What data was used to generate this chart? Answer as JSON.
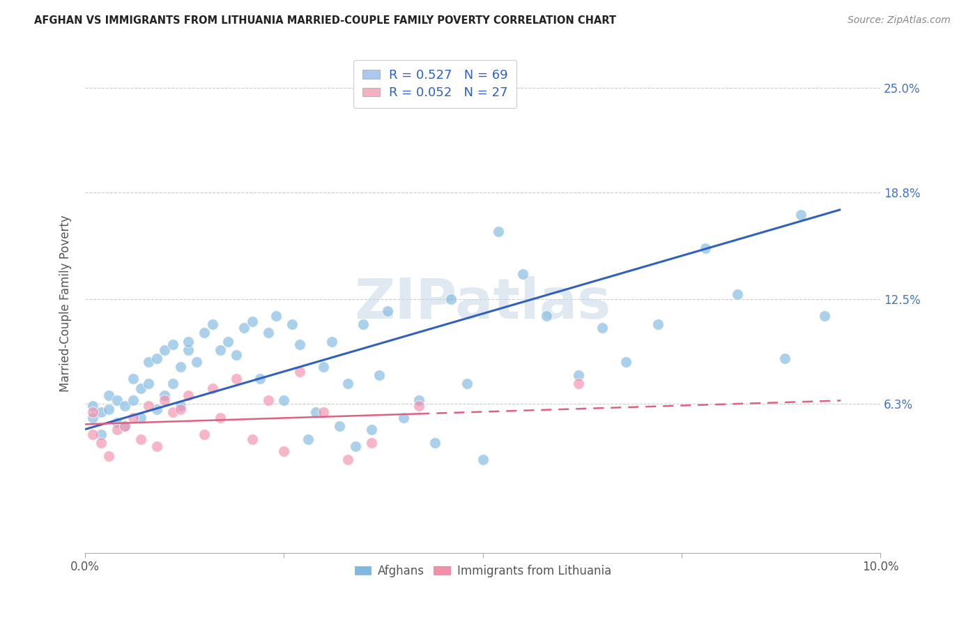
{
  "title": "AFGHAN VS IMMIGRANTS FROM LITHUANIA MARRIED-COUPLE FAMILY POVERTY CORRELATION CHART",
  "source": "Source: ZipAtlas.com",
  "ylabel": "Married-Couple Family Poverty",
  "ytick_labels": [
    "6.3%",
    "12.5%",
    "18.8%",
    "25.0%"
  ],
  "ytick_values": [
    0.063,
    0.125,
    0.188,
    0.25
  ],
  "xlim": [
    0.0,
    0.1
  ],
  "ylim": [
    -0.025,
    0.27
  ],
  "legend_label1": "R = 0.527   N = 69",
  "legend_label2": "R = 0.052   N = 27",
  "legend_color1": "#aac8f0",
  "legend_color2": "#f4b0c0",
  "watermark": "ZIPatlas",
  "afghans_color": "#7fb8e0",
  "lithuania_color": "#f48faa",
  "trendline_afghan_color": "#3060c0",
  "trendline_lithuania_color": "#e06080",
  "afghans_x": [
    0.001,
    0.001,
    0.002,
    0.002,
    0.003,
    0.003,
    0.004,
    0.004,
    0.005,
    0.005,
    0.006,
    0.006,
    0.007,
    0.007,
    0.008,
    0.008,
    0.009,
    0.009,
    0.01,
    0.01,
    0.011,
    0.011,
    0.012,
    0.012,
    0.013,
    0.013,
    0.014,
    0.015,
    0.016,
    0.017,
    0.018,
    0.019,
    0.02,
    0.021,
    0.022,
    0.023,
    0.024,
    0.025,
    0.026,
    0.027,
    0.028,
    0.029,
    0.03,
    0.031,
    0.032,
    0.033,
    0.034,
    0.035,
    0.036,
    0.037,
    0.038,
    0.04,
    0.042,
    0.044,
    0.046,
    0.048,
    0.05,
    0.052,
    0.055,
    0.058,
    0.062,
    0.065,
    0.068,
    0.072,
    0.078,
    0.082,
    0.088,
    0.09,
    0.093
  ],
  "afghans_y": [
    0.055,
    0.062,
    0.058,
    0.045,
    0.06,
    0.068,
    0.052,
    0.065,
    0.062,
    0.05,
    0.065,
    0.078,
    0.072,
    0.055,
    0.075,
    0.088,
    0.06,
    0.09,
    0.068,
    0.095,
    0.098,
    0.075,
    0.085,
    0.062,
    0.095,
    0.1,
    0.088,
    0.105,
    0.11,
    0.095,
    0.1,
    0.092,
    0.108,
    0.112,
    0.078,
    0.105,
    0.115,
    0.065,
    0.11,
    0.098,
    0.042,
    0.058,
    0.085,
    0.1,
    0.05,
    0.075,
    0.038,
    0.11,
    0.048,
    0.08,
    0.118,
    0.055,
    0.065,
    0.04,
    0.125,
    0.075,
    0.03,
    0.165,
    0.14,
    0.115,
    0.08,
    0.108,
    0.088,
    0.11,
    0.155,
    0.128,
    0.09,
    0.175,
    0.115
  ],
  "afghans_trendline": [
    0.048,
    0.178
  ],
  "lithuania_x": [
    0.001,
    0.001,
    0.002,
    0.003,
    0.004,
    0.005,
    0.006,
    0.007,
    0.008,
    0.009,
    0.01,
    0.011,
    0.012,
    0.013,
    0.015,
    0.016,
    0.017,
    0.019,
    0.021,
    0.023,
    0.025,
    0.027,
    0.03,
    0.033,
    0.036,
    0.042,
    0.062
  ],
  "lithuania_y": [
    0.058,
    0.045,
    0.04,
    0.032,
    0.048,
    0.05,
    0.055,
    0.042,
    0.062,
    0.038,
    0.065,
    0.058,
    0.06,
    0.068,
    0.045,
    0.072,
    0.055,
    0.078,
    0.042,
    0.065,
    0.035,
    0.082,
    0.058,
    0.03,
    0.04,
    0.062,
    0.075
  ],
  "lithuania_trendline": [
    0.051,
    0.065
  ],
  "afghanistan_trendline_x": [
    0.0,
    0.095
  ],
  "lithuania_trendline_x": [
    0.0,
    0.095
  ]
}
